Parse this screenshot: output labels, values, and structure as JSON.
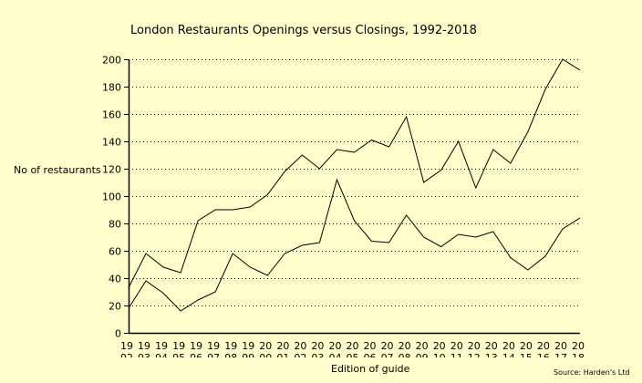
{
  "chart_data": {
    "type": "line",
    "title": "London Restaurants Openings versus Closings, 1992-2018",
    "xlabel": "Edition of guide",
    "ylabel": "No of restaurants",
    "source": "Source: Harden's Ltd",
    "ylim": [
      0,
      200
    ],
    "yticks": [
      0,
      20,
      40,
      60,
      80,
      100,
      120,
      140,
      160,
      180,
      200
    ],
    "grid": true,
    "x": [
      "1992",
      "1993",
      "1994",
      "1995",
      "1996",
      "1997",
      "1998",
      "1999",
      "2000",
      "2001",
      "2002",
      "2003",
      "2004",
      "2005",
      "2006",
      "2007",
      "2008",
      "2009",
      "2010",
      "2011",
      "2012",
      "2013",
      "2014",
      "2015",
      "2016",
      "2017",
      "2018"
    ],
    "series": [
      {
        "name": "Openings",
        "color": "#000000",
        "values": [
          33,
          58,
          48,
          44,
          82,
          90,
          90,
          92,
          101,
          118,
          130,
          120,
          134,
          132,
          141,
          136,
          158,
          110,
          119,
          140,
          106,
          134,
          124,
          147,
          178,
          200,
          192
        ]
      },
      {
        "name": "Closings",
        "color": "#000000",
        "values": [
          18,
          38,
          29,
          16,
          24,
          30,
          58,
          48,
          42,
          58,
          64,
          66,
          112,
          82,
          67,
          66,
          86,
          70,
          63,
          72,
          70,
          74,
          55,
          46,
          56,
          76,
          84
        ]
      }
    ]
  }
}
